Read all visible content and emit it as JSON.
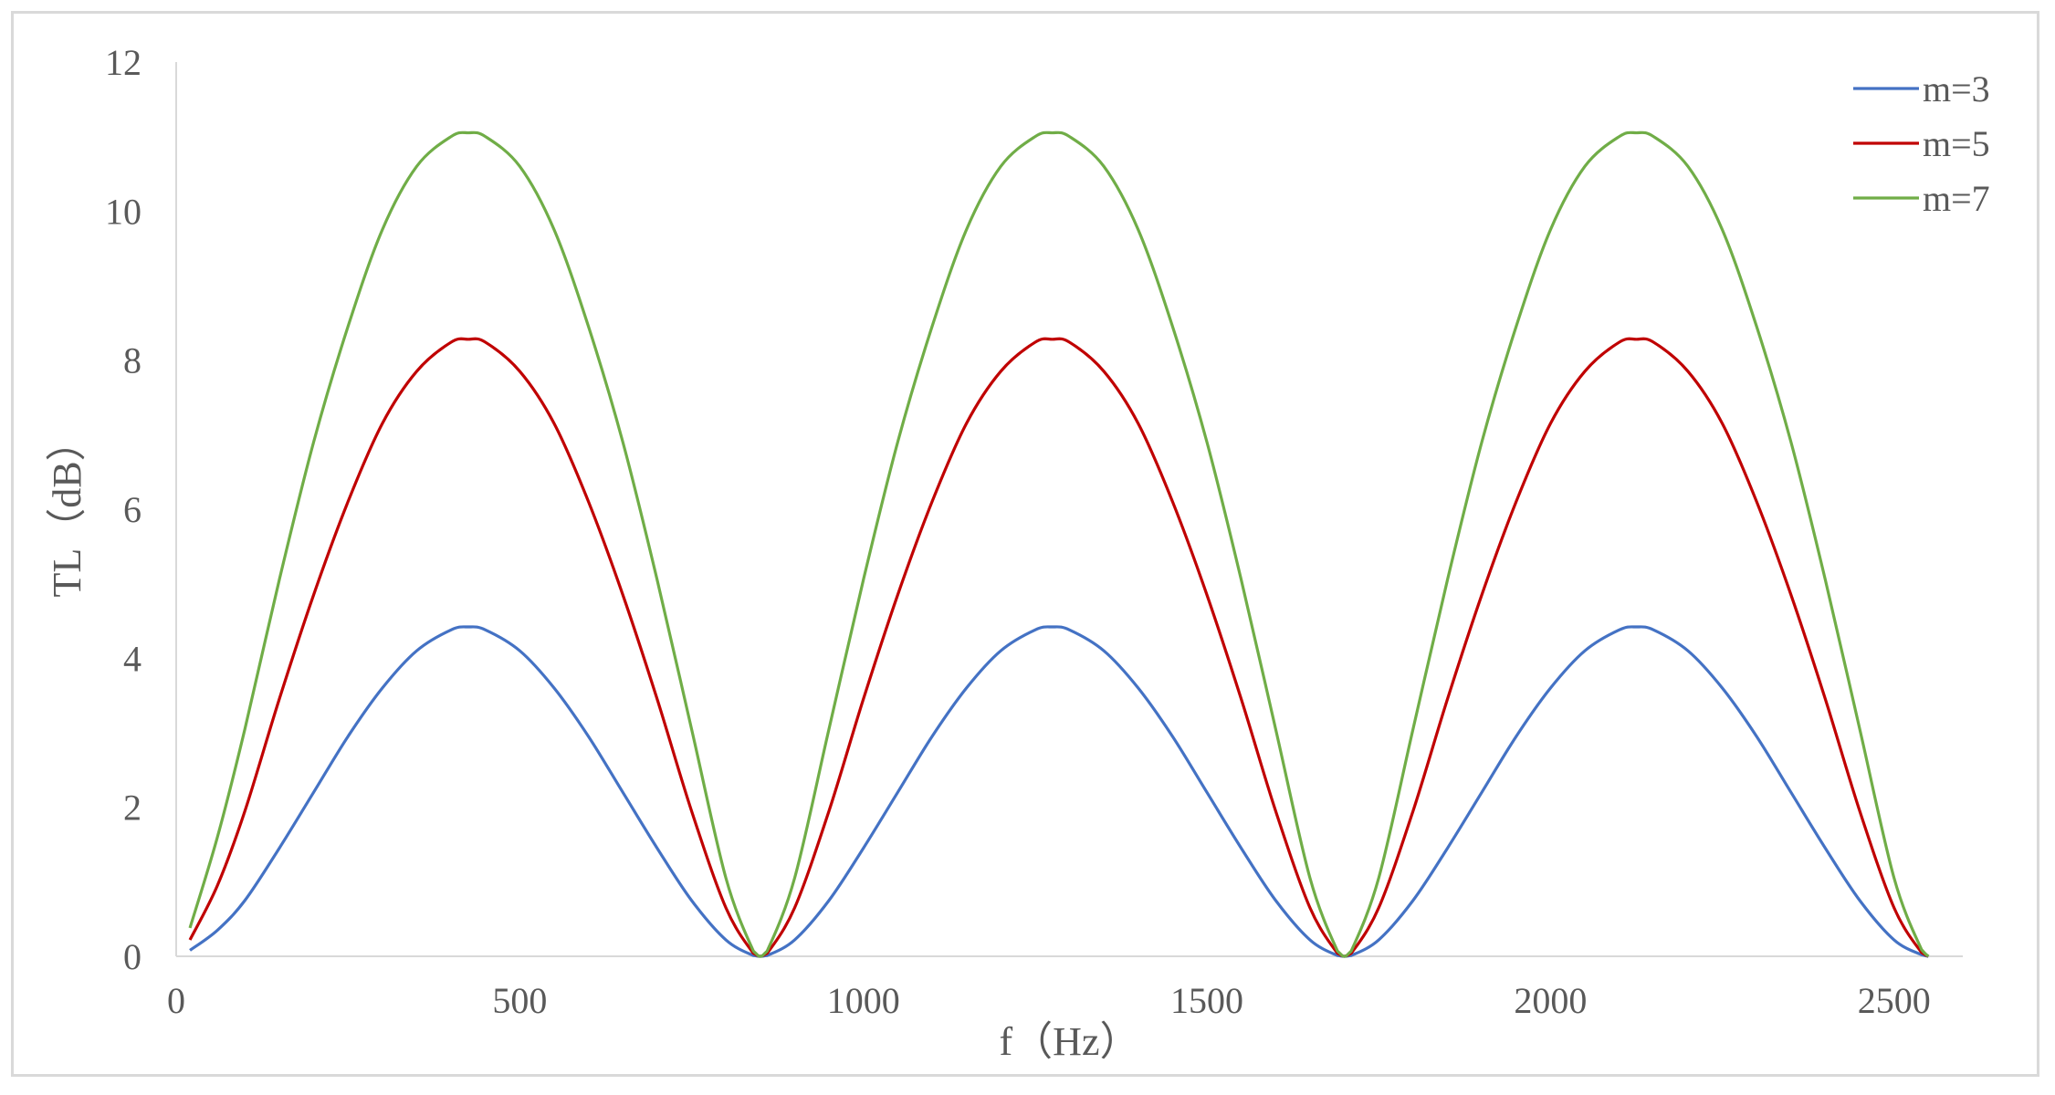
{
  "chart_data": {
    "type": "line",
    "title": "",
    "xlabel": "f（Hz）",
    "ylabel": "TL（dB）",
    "xlim": [
      0,
      2600
    ],
    "ylim": [
      0,
      12
    ],
    "xticks": [
      0,
      500,
      1000,
      1500,
      2000,
      2500
    ],
    "yticks": [
      0,
      2,
      4,
      6,
      8,
      10,
      12
    ],
    "grid": false,
    "legend": "top-right",
    "x": [
      20,
      60,
      100,
      150,
      200,
      250,
      300,
      350,
      400,
      425,
      450,
      500,
      550,
      600,
      650,
      700,
      750,
      800,
      840,
      850,
      860,
      900,
      950,
      1000,
      1050,
      1100,
      1150,
      1200,
      1250,
      1275,
      1300,
      1350,
      1400,
      1450,
      1500,
      1550,
      1600,
      1650,
      1690,
      1700,
      1710,
      1750,
      1800,
      1850,
      1900,
      1950,
      2000,
      2050,
      2100,
      2125,
      2150,
      2200,
      2250,
      2300,
      2350,
      2400,
      2450,
      2500,
      2540,
      2550
    ],
    "series": [
      {
        "name": "m=3",
        "color": "#4472c4",
        "values": [
          0.08,
          0.35,
          0.75,
          1.45,
          2.2,
          2.95,
          3.6,
          4.1,
          4.38,
          4.42,
          4.38,
          4.1,
          3.6,
          2.95,
          2.2,
          1.45,
          0.75,
          0.22,
          0.01,
          0.0,
          0.01,
          0.22,
          0.75,
          1.45,
          2.2,
          2.95,
          3.6,
          4.1,
          4.38,
          4.42,
          4.38,
          4.1,
          3.6,
          2.95,
          2.2,
          1.45,
          0.75,
          0.22,
          0.01,
          0.0,
          0.01,
          0.22,
          0.75,
          1.45,
          2.2,
          2.95,
          3.6,
          4.1,
          4.38,
          4.42,
          4.38,
          4.1,
          3.6,
          2.95,
          2.2,
          1.45,
          0.75,
          0.22,
          0.02,
          0.0
        ]
      },
      {
        "name": "m=5",
        "color": "#c00000",
        "values": [
          0.22,
          0.95,
          1.95,
          3.45,
          4.85,
          6.1,
          7.15,
          7.85,
          8.24,
          8.28,
          8.24,
          7.85,
          7.15,
          6.1,
          4.85,
          3.45,
          1.95,
          0.65,
          0.04,
          0.0,
          0.04,
          0.65,
          1.95,
          3.45,
          4.85,
          6.1,
          7.15,
          7.85,
          8.24,
          8.28,
          8.24,
          7.85,
          7.15,
          6.1,
          4.85,
          3.45,
          1.95,
          0.65,
          0.04,
          0.0,
          0.04,
          0.65,
          1.95,
          3.45,
          4.85,
          6.1,
          7.15,
          7.85,
          8.24,
          8.28,
          8.24,
          7.85,
          7.15,
          6.1,
          4.85,
          3.45,
          1.95,
          0.65,
          0.05,
          0.0
        ]
      },
      {
        "name": "m=7",
        "color": "#70ad47",
        "values": [
          0.38,
          1.6,
          3.05,
          5.05,
          6.9,
          8.45,
          9.75,
          10.6,
          11.0,
          11.05,
          11.0,
          10.6,
          9.75,
          8.45,
          6.9,
          5.05,
          3.05,
          1.05,
          0.07,
          0.0,
          0.07,
          1.05,
          3.05,
          5.05,
          6.9,
          8.45,
          9.75,
          10.6,
          11.0,
          11.05,
          11.0,
          10.6,
          9.75,
          8.45,
          6.9,
          5.05,
          3.05,
          1.05,
          0.07,
          0.0,
          0.07,
          1.05,
          3.05,
          5.05,
          6.9,
          8.45,
          9.75,
          10.6,
          11.0,
          11.05,
          11.0,
          10.6,
          9.75,
          8.45,
          6.9,
          5.05,
          3.05,
          1.05,
          0.09,
          0.0
        ]
      }
    ]
  }
}
